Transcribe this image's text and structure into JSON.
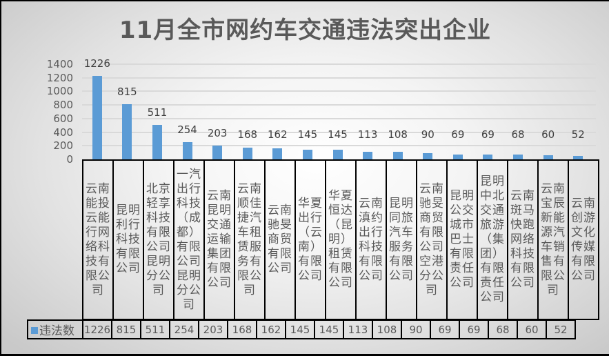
{
  "title": "11月全市网约车交通违法突出企业",
  "colors": {
    "bar": "#5b9bd5",
    "text": "#595959",
    "grid": "#d9d9d9"
  },
  "legend": {
    "label": "违法数",
    "icon": "square-swatch-icon"
  },
  "y_ticks": [
    "1400",
    "1200",
    "1000",
    "800",
    "600",
    "400",
    "200",
    "0"
  ],
  "companies": [
    "云南能投云能行网络科技有限公司",
    "昆明利行科技有限公司",
    "北京轻享科技有限公司昆明分公司",
    "一汽出行科技（成都）有限公司昆明分公司",
    "云南昆明交通运输集团有限公司",
    "云南顺佳捷汽车租赁服务有限公司",
    "云南驰旻商贸有限公司",
    "华夏出行（云南）有限公司",
    "华夏恒达（昆明）租赁有限公司",
    "云南滇约出行科技有限公司",
    "昆明同旅汽车服务有限公司",
    "云南驰旻商贸有限公司空港分公司",
    "昆明公交城市巴士有限责任公司",
    "昆明中北交通旅游（集团）有限责任公司",
    "云南斑马快跑网络科技有限公司",
    "云南宝辰新能源汽车销售有限公司",
    "云南创游文化传媒有限公司"
  ],
  "values": [
    "1226",
    "815",
    "511",
    "254",
    "203",
    "168",
    "162",
    "145",
    "145",
    "113",
    "108",
    "90",
    "69",
    "69",
    "68",
    "60",
    "52"
  ],
  "chart_data": {
    "type": "bar",
    "title": "11月全市网约车交通违法突出企业",
    "xlabel": "",
    "ylabel": "",
    "ylim": [
      0,
      1400
    ],
    "yticks": [
      0,
      200,
      400,
      600,
      800,
      1000,
      1200,
      1400
    ],
    "grid": true,
    "legend_position": "bottom-left (data table)",
    "data_table": true,
    "categories": [
      "云南能投云能行网络科技有限公司",
      "昆明利行科技有限公司",
      "北京轻享科技有限公司昆明分公司",
      "一汽出行科技（成都）有限公司昆明分公司",
      "云南昆明交通运输集团有限公司",
      "云南顺佳捷汽车租赁服务有限公司",
      "云南驰旻商贸有限公司",
      "华夏出行（云南）有限公司",
      "华夏恒达（昆明）租赁有限公司",
      "云南滇约出行科技有限公司",
      "昆明同旅汽车服务有限公司",
      "云南驰旻商贸有限公司空港分公司",
      "昆明公交城市巴士有限责任公司",
      "昆明中北交通旅游（集团）有限责任公司",
      "云南斑马快跑网络科技有限公司",
      "云南宝辰新能源汽车销售有限公司",
      "云南创游文化传媒有限公司"
    ],
    "series": [
      {
        "name": "违法数",
        "color": "#5b9bd5",
        "values": [
          1226,
          815,
          511,
          254,
          203,
          168,
          162,
          145,
          145,
          113,
          108,
          90,
          69,
          69,
          68,
          60,
          52
        ]
      }
    ]
  }
}
